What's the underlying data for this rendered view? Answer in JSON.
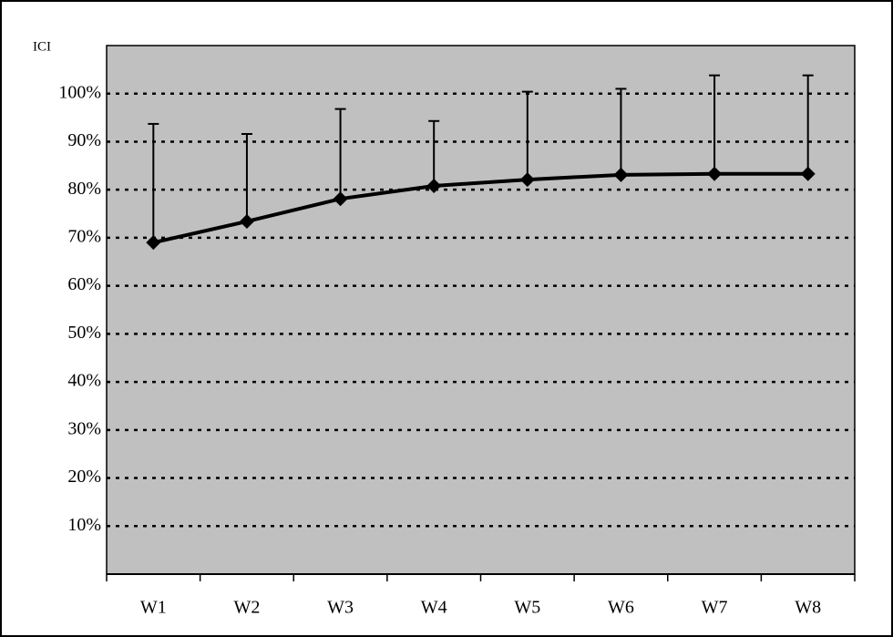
{
  "chart_data": {
    "type": "line",
    "y_label": "ICI",
    "categories": [
      "W1",
      "W2",
      "W3",
      "W4",
      "W5",
      "W6",
      "W7",
      "W8"
    ],
    "series": [
      {
        "name": "ICI",
        "color": "#000000",
        "values": [
          69.0,
          73.4,
          78.1,
          80.8,
          82.1,
          83.1,
          83.3,
          83.3
        ],
        "errors": [
          24.7,
          18.2,
          18.7,
          13.5,
          18.3,
          17.9,
          20.5,
          20.5
        ]
      }
    ],
    "ylim": [
      0,
      110
    ],
    "yticks": [
      {
        "value": 10,
        "label": "10%"
      },
      {
        "value": 20,
        "label": "20%"
      },
      {
        "value": 30,
        "label": "30%"
      },
      {
        "value": 40,
        "label": "40%"
      },
      {
        "value": 50,
        "label": "50%"
      },
      {
        "value": 60,
        "label": "60%"
      },
      {
        "value": 70,
        "label": "70%"
      },
      {
        "value": 80,
        "label": "80%"
      },
      {
        "value": 90,
        "label": "90%"
      },
      {
        "value": 100,
        "label": "100%"
      }
    ],
    "grid": true,
    "plot_background": "#c0c0c0"
  }
}
